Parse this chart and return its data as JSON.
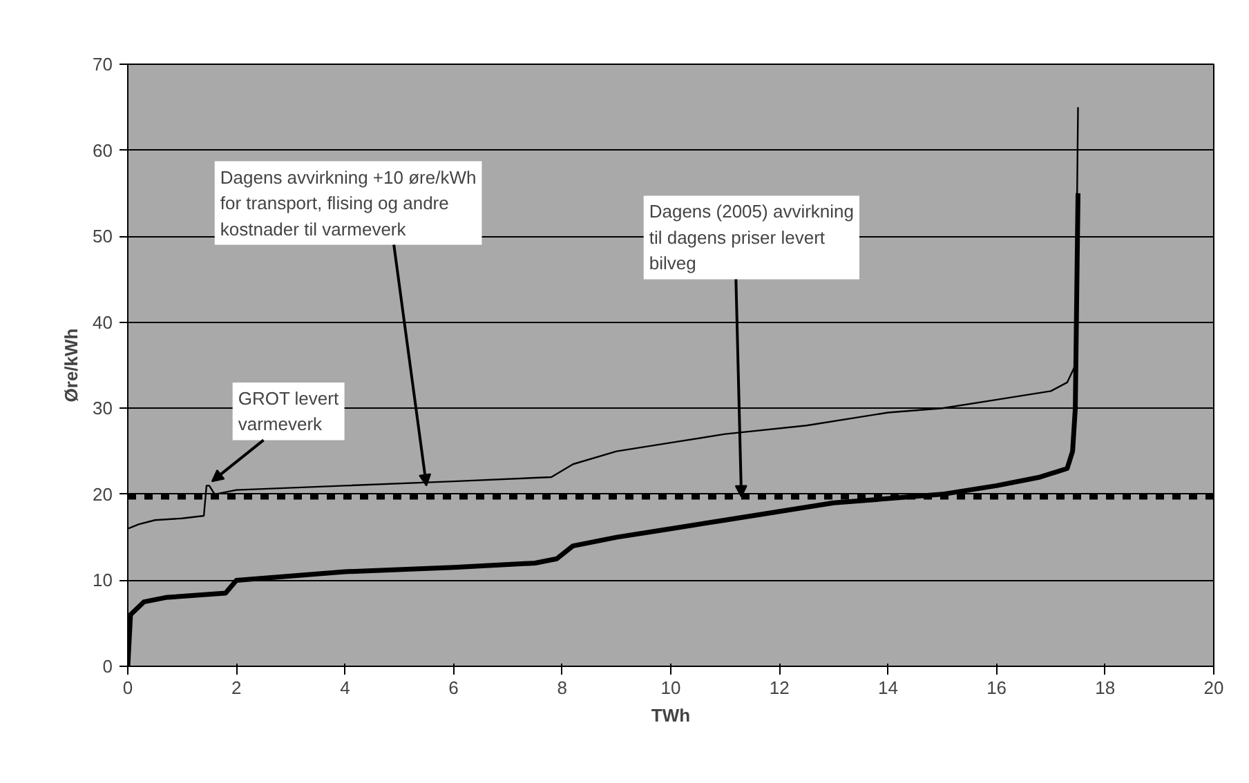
{
  "chart_data": {
    "type": "line",
    "xlabel": "TWh",
    "ylabel": "Øre/kWh",
    "xlim": [
      0,
      20
    ],
    "ylim": [
      0,
      70
    ],
    "xticks": [
      0,
      2,
      4,
      6,
      8,
      10,
      12,
      14,
      16,
      18,
      20
    ],
    "yticks": [
      0,
      10,
      20,
      30,
      40,
      50,
      60,
      70
    ],
    "grid": "y",
    "line_style": "solid",
    "series": [
      {
        "color": "#000000",
        "x": [
          0,
          0.2,
          0.5,
          1.0,
          1.4,
          1.45,
          1.5,
          1.6,
          2.0,
          4.0,
          6.0,
          7.8,
          8.2,
          9.0,
          10.0,
          11.0,
          12.5,
          14.0,
          15.0,
          16.0,
          17.0,
          17.3,
          17.45,
          17.5
        ],
        "values": [
          16,
          16.5,
          17,
          17.2,
          17.5,
          21,
          21,
          20,
          20.5,
          21,
          21.5,
          22,
          23.5,
          25,
          26,
          27,
          28,
          29.5,
          30,
          31,
          32,
          33,
          35,
          65
        ]
      },
      {
        "color": "#000000",
        "x": [
          0,
          0.05,
          0.3,
          0.7,
          1.8,
          2.0,
          3.0,
          4.0,
          6.0,
          7.5,
          7.9,
          8.2,
          9.0,
          10.0,
          11.0,
          12.0,
          13.0,
          14.0,
          15.0,
          16.0,
          16.8,
          17.3,
          17.4,
          17.45,
          17.5
        ],
        "values": [
          0,
          6,
          7.5,
          8,
          8.5,
          10,
          10.5,
          11,
          11.5,
          12,
          12.5,
          14,
          15,
          16,
          17,
          18,
          19,
          19.5,
          20,
          21,
          22,
          23,
          25,
          30,
          55
        ]
      }
    ],
    "ref_lines": [
      {
        "axis": "y",
        "value": 19.7,
        "color": "#000000",
        "line_style": "dashed"
      }
    ],
    "annotations": [
      {
        "text": "Dagens avvirkning +10 øre/kWh for transport, flising og andre kostnader til varmeverk",
        "x": 5.5,
        "y": 21
      },
      {
        "text": "Dagens (2005) avvirkning til dagens priser levert bilveg",
        "x": 11.3,
        "y": 19.7
      },
      {
        "text": "GROT levert varmeverk",
        "x": 1.55,
        "y": 21.5
      }
    ]
  }
}
